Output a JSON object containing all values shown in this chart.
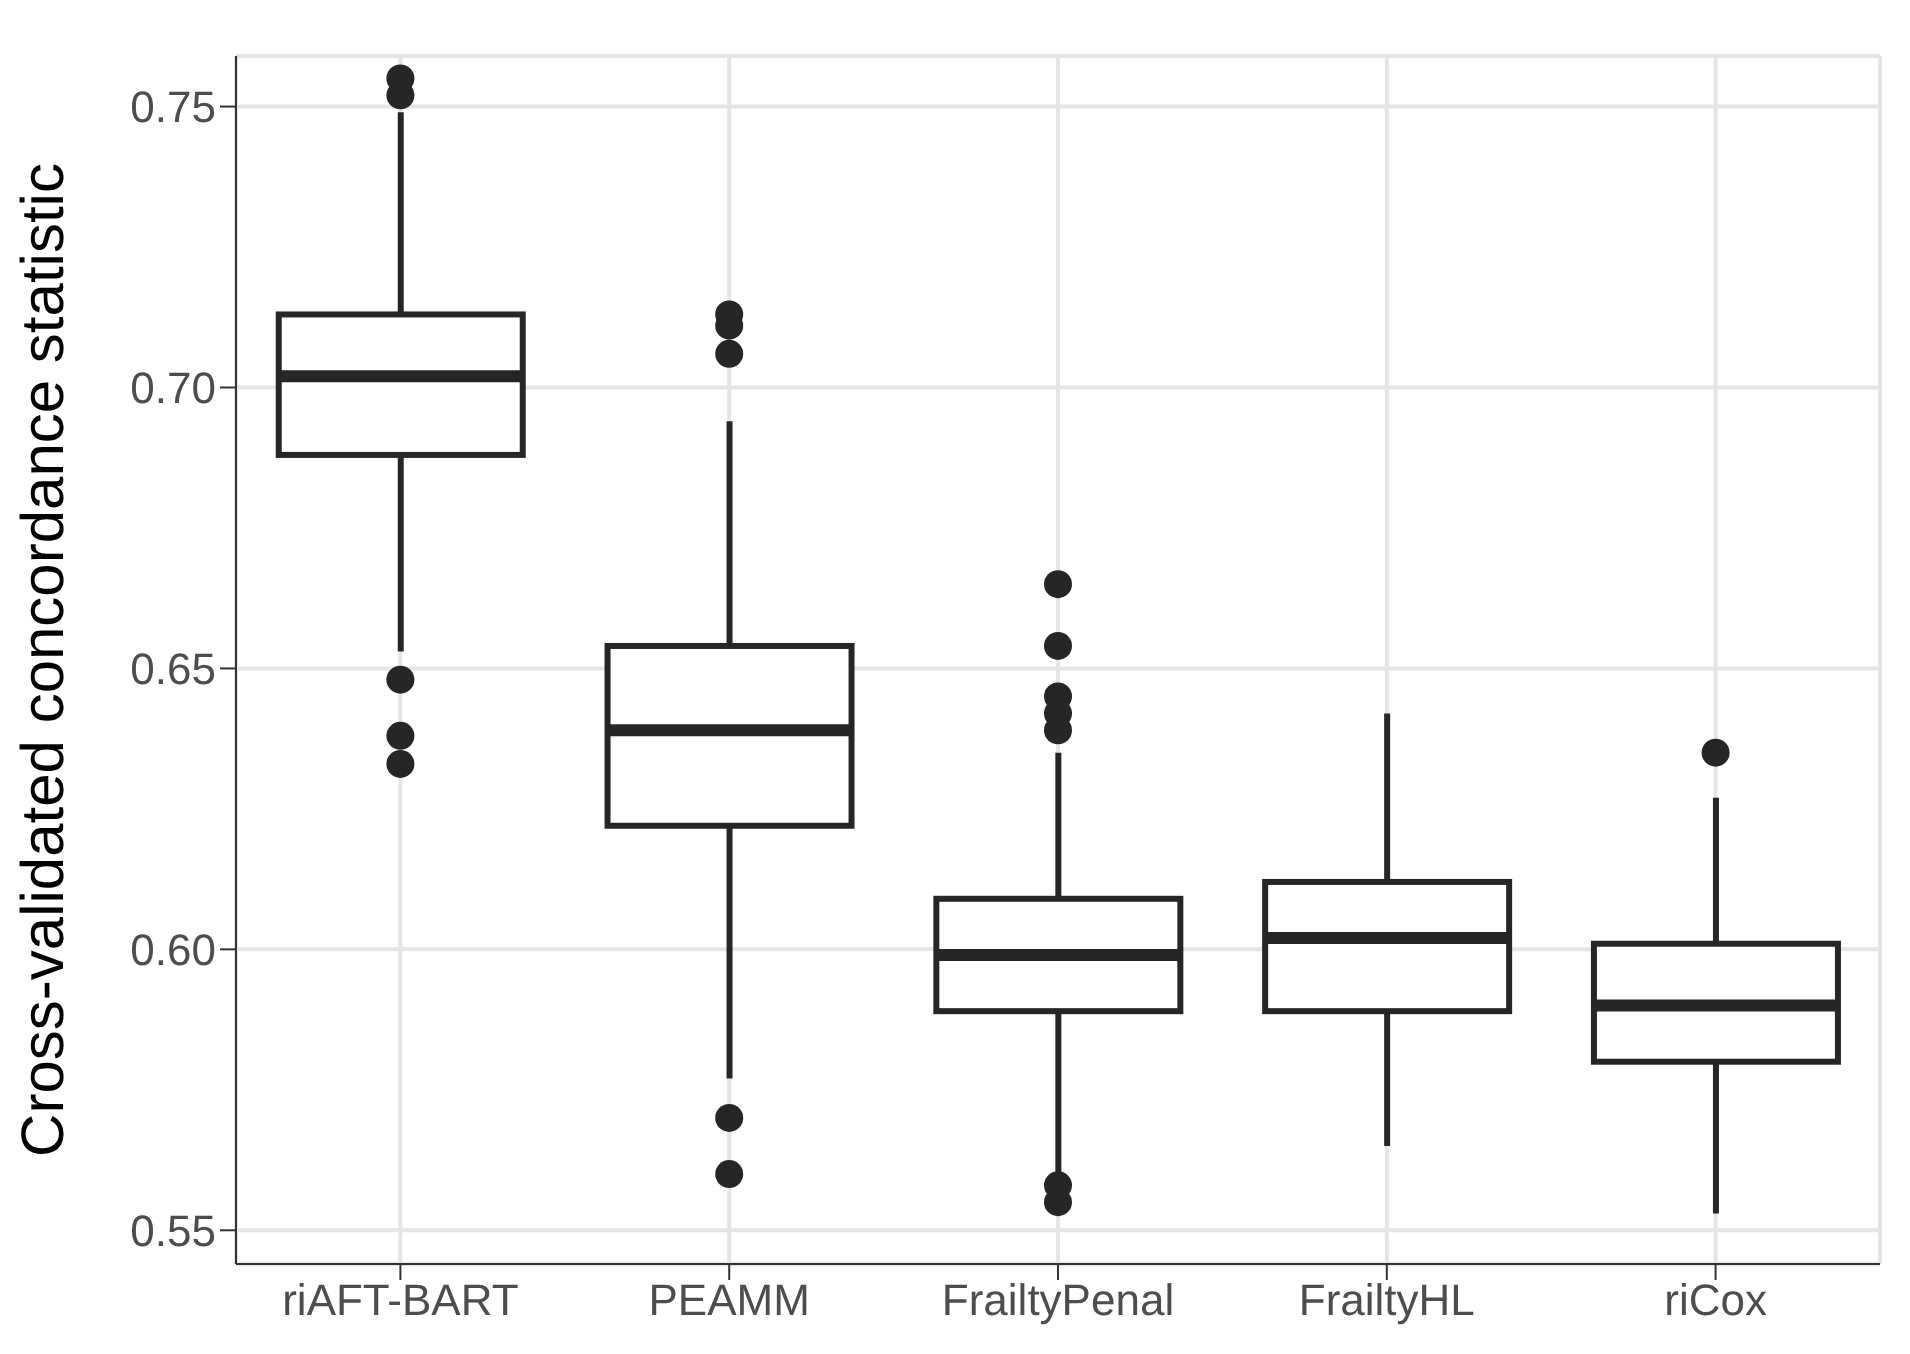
{
  "chart_data": {
    "type": "box",
    "ylabel": "Cross-validated concordance statistic",
    "categories": [
      "riAFT-BART",
      "PEAMM",
      "FrailtyPenal",
      "FrailtyHL",
      "riCox"
    ],
    "boxes": [
      {
        "low": 0.653,
        "q1": 0.688,
        "median": 0.702,
        "q3": 0.713,
        "high": 0.749,
        "outliers": [
          0.755,
          0.752,
          0.648,
          0.638,
          0.633
        ]
      },
      {
        "low": 0.577,
        "q1": 0.622,
        "median": 0.639,
        "q3": 0.654,
        "high": 0.694,
        "outliers": [
          0.713,
          0.711,
          0.706,
          0.57,
          0.56
        ]
      },
      {
        "low": 0.56,
        "q1": 0.589,
        "median": 0.599,
        "q3": 0.609,
        "high": 0.635,
        "outliers": [
          0.665,
          0.654,
          0.645,
          0.642,
          0.639,
          0.558,
          0.555
        ]
      },
      {
        "low": 0.565,
        "q1": 0.589,
        "median": 0.602,
        "q3": 0.612,
        "high": 0.642
      },
      {
        "low": 0.553,
        "q1": 0.58,
        "median": 0.59,
        "q3": 0.601,
        "high": 0.627,
        "outliers": [
          0.635
        ]
      }
    ],
    "color": "#262626",
    "ylim": [
      0.544,
      0.759
    ],
    "yticks": [
      0.55,
      {
        "value": 0.6,
        "label": "0.60"
      },
      0.65,
      {
        "value": 0.7,
        "label": "0.70"
      },
      0.75
    ],
    "grid": true
  }
}
